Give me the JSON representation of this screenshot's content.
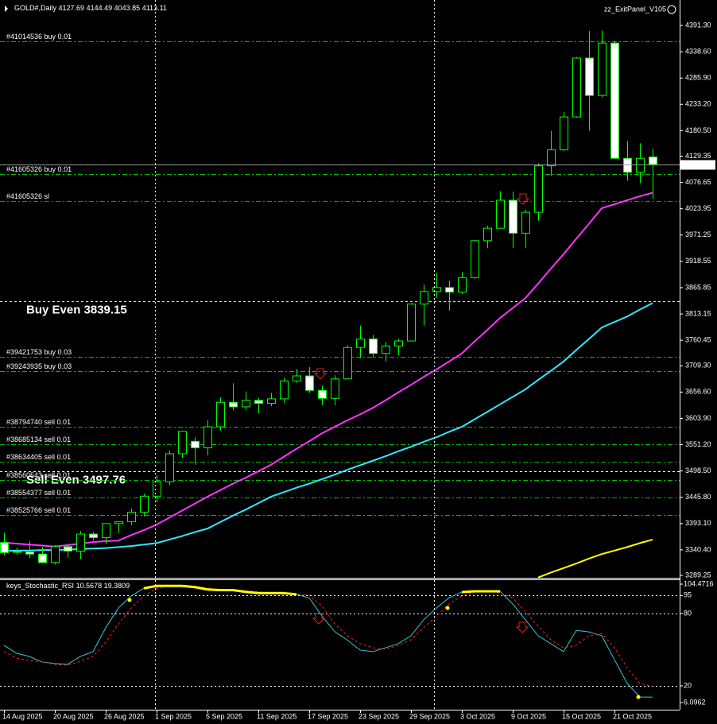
{
  "chart_data": [
    {
      "type": "candlestick",
      "title": "GOLD#,Daily",
      "panel": "zz_ExitPanel_V105",
      "categories": [
        "14 Aug 2025",
        null,
        null,
        null,
        "20 Aug 2025",
        null,
        null,
        null,
        "26 Aug 2025",
        null,
        null,
        null,
        "1 Sep 2025",
        null,
        null,
        null,
        "5 Sep 2025",
        null,
        null,
        null,
        "11 Sep 2025",
        null,
        null,
        null,
        "17 Sep 2025",
        null,
        null,
        null,
        "23 Sep 2025",
        null,
        null,
        null,
        "29 Sep 2025",
        null,
        null,
        null,
        "3 Oct 2025",
        null,
        null,
        null,
        "9 Oct 2025",
        null,
        null,
        null,
        "15 Oct 2025",
        null,
        null,
        null,
        "21 Oct 2025",
        null,
        null,
        null
      ],
      "open": [
        3355,
        3337,
        3336,
        3332,
        3315,
        3347,
        3338,
        3372,
        3365,
        3393,
        3397,
        3416,
        3448,
        3477,
        3533,
        3558,
        3545,
        3587,
        3636,
        3627,
        3640,
        3634,
        3643,
        3679,
        3689,
        3660,
        3644,
        3683,
        3746,
        3763,
        3734,
        3749,
        3759,
        3833,
        3858,
        3866,
        3857,
        3886,
        3960,
        3985,
        4041,
        3975,
        4017,
        4110,
        4142,
        4208,
        4326,
        4251,
        4356,
        4125,
        4097,
        4127.69
      ],
      "high": [
        3375,
        3345,
        3358,
        3346,
        3350,
        3350,
        3378,
        3376,
        3393,
        3398,
        3423,
        3453,
        3490,
        3540,
        3578,
        3566,
        3600,
        3646,
        3674,
        3658,
        3645,
        3655,
        3685,
        3703,
        3707,
        3670,
        3690,
        3750,
        3790,
        3771,
        3757,
        3763,
        3835,
        3872,
        3895,
        3880,
        3897,
        3960,
        3990,
        4059,
        4058,
        4022,
        4115,
        4180,
        4218,
        4328,
        4380,
        4381,
        4360,
        4160,
        4155,
        4144.49
      ],
      "low": [
        3330,
        3330,
        3324,
        3315,
        3311,
        3325,
        3322,
        3360,
        3352,
        3375,
        3390,
        3408,
        3436,
        3470,
        3525,
        3511,
        3530,
        3580,
        3620,
        3620,
        3614,
        3628,
        3635,
        3675,
        3655,
        3630,
        3630,
        3682,
        3725,
        3725,
        3718,
        3730,
        3758,
        3790,
        3845,
        3820,
        3853,
        3884,
        3945,
        3985,
        3945,
        3945,
        4000,
        4090,
        4140,
        4206,
        4180,
        4247,
        4125,
        4080,
        4075,
        4043.85
      ],
      "close": [
        3335,
        3336,
        3332,
        3315,
        3347,
        3338,
        3372,
        3365,
        3393,
        3397,
        3416,
        3448,
        3477,
        3533,
        3578,
        3545,
        3587,
        3636,
        3627,
        3640,
        3634,
        3643,
        3679,
        3689,
        3660,
        3644,
        3683,
        3746,
        3763,
        3734,
        3749,
        3759,
        3833,
        3858,
        3866,
        3857,
        3886,
        3960,
        3985,
        4041,
        3975,
        4017,
        4110,
        4142,
        4208,
        4326,
        4251,
        4356,
        4125,
        4097,
        4125,
        4113.11
      ],
      "up_color": "#000000",
      "down_color": "#ffffff",
      "wick_color": "#00ff00",
      "series": [
        {
          "color": "#ff33ff",
          "values": [
            3355,
            3353,
            3351,
            3349,
            3347,
            3350,
            3353,
            3356,
            3358,
            3359,
            3370,
            3380,
            3391,
            3405,
            3419,
            3433,
            3447,
            3460,
            3473,
            3485,
            3498,
            3511,
            3527,
            3543,
            3558,
            3574,
            3587,
            3600,
            3612,
            3625,
            3640,
            3656,
            3671,
            3687,
            3702,
            3718,
            3734,
            3758,
            3781,
            3805,
            3825,
            3845,
            3874,
            3904,
            3933,
            3964,
            3994,
            4025,
            4033,
            4041,
            4049,
            4056
          ]
        },
        {
          "color": "#33e6ff",
          "values": [
            3338,
            3339,
            3339,
            3340,
            3340,
            3341,
            3342,
            3343,
            3344,
            3346,
            3348,
            3351,
            3354,
            3361,
            3368,
            3376,
            3383,
            3396,
            3409,
            3421,
            3434,
            3447,
            3456,
            3465,
            3473,
            3482,
            3491,
            3501,
            3510,
            3519,
            3528,
            3538,
            3547,
            3557,
            3566,
            3577,
            3587,
            3602,
            3617,
            3632,
            3647,
            3662,
            3681,
            3699,
            3718,
            3741,
            3763,
            3786,
            3797,
            3808,
            3822,
            3835
          ]
        },
        {
          "color": "#ffff00",
          "values": [
            null,
            null,
            null,
            null,
            null,
            null,
            null,
            null,
            null,
            null,
            null,
            null,
            null,
            null,
            null,
            null,
            null,
            null,
            null,
            null,
            null,
            null,
            null,
            null,
            null,
            null,
            null,
            null,
            null,
            null,
            null,
            null,
            null,
            null,
            null,
            null,
            null,
            null,
            null,
            null,
            null,
            null,
            3285,
            3295,
            3304,
            3313,
            3323,
            3332,
            3339,
            3346,
            3354,
            3361
          ]
        }
      ],
      "levels": [
        {
          "label": "#41014536 buy 0.01",
          "value": 4359.5,
          "color": "#00c000",
          "text_color": "#ffffff",
          "dash": "6,3,2,3"
        },
        {
          "label": "#41605326 buy 0.01",
          "value": 4093.5,
          "color": "#00c000",
          "text_color": "#ffffff",
          "dash": "6,3,2,3"
        },
        {
          "label": "#41605326 sl",
          "value": 4039.3,
          "color": "#ff2020",
          "text_color": "#ffffff",
          "dash": "6,3,2,3"
        },
        {
          "label": "Buy Even 3839.15",
          "value": 3839.15,
          "color": "#ffff00",
          "text_color": "#ffff33",
          "dash": "3,3",
          "big": true
        },
        {
          "label": "#39421753 buy 0.03",
          "value": 3727.2,
          "color": "#00c000",
          "text_color": "#ffffff",
          "dash": "6,3,2,3"
        },
        {
          "label": "#39243935 buy 0.03",
          "value": 3698.5,
          "color": "#00c000",
          "text_color": "#ffffff",
          "dash": "6,3,2,3"
        },
        {
          "label": "#38794740 sell 0.01",
          "value": 3587,
          "color": "#00c000",
          "text_color": "#ffffff",
          "dash": "6,3,2,3"
        },
        {
          "label": "#38685134 sell 0.01",
          "value": 3552,
          "color": "#00c000",
          "text_color": "#ffffff",
          "dash": "6,3,2,3"
        },
        {
          "label": "#38634405 sell 0.01",
          "value": 3517,
          "color": "#00c000",
          "text_color": "#ffffff",
          "dash": "6,3,2,3"
        },
        {
          "label": "Sell Even 3497.76",
          "value": 3497.76,
          "color": "#ffffff",
          "text_color": "#ffff33",
          "dash": "3,3",
          "big": true
        },
        {
          "label": "#38560543 sell 0.01",
          "value": 3480,
          "color": "#00c000",
          "text_color": "#ffffff",
          "dash": "6,3,2,3"
        },
        {
          "label": "#38554377 sell 0.01",
          "value": 3445,
          "color": "#00c000",
          "text_color": "#ffffff",
          "dash": "6,3,2,3"
        },
        {
          "label": "#38525766 sell 0.01",
          "value": 3410,
          "color": "#00c000",
          "text_color": "#ffffff",
          "dash": "6,3,2,3"
        }
      ],
      "bid": 4113.11,
      "ylim": [
        3284.5,
        4442.3
      ],
      "yticks": [
        {
          "value": 4391.3,
          "label": "4391.30"
        },
        {
          "value": 4338.6,
          "label": "4338.60"
        },
        {
          "value": 4285.9,
          "label": "4285.90"
        },
        {
          "value": 4233.2,
          "label": "4233.20"
        },
        {
          "value": 4180.5,
          "label": "4180.50"
        },
        4129.35,
        4076.65,
        4023.95,
        3971.25,
        3918.55,
        3865.85,
        3813.15,
        3760.45,
        {
          "value": 3709.3,
          "label": "3709.30"
        },
        {
          "value": 3656.6,
          "label": "3656.60"
        },
        {
          "value": 3603.9,
          "label": "3603.90"
        },
        {
          "value": 3551.2,
          "label": "3551.20"
        },
        {
          "value": 3498.5,
          "label": "3498.50"
        },
        {
          "value": 3445.8,
          "label": "3445.80"
        },
        {
          "value": 3393.1,
          "label": "3393.10"
        },
        {
          "value": 3340.4,
          "label": "3340.40"
        },
        3289.25
      ]
    },
    {
      "type": "line",
      "title": "keys_Stochastic_RSI",
      "series": [
        {
          "color": "#33c8d8",
          "values": [
            53.6,
            47,
            44.4,
            39.8,
            38.5,
            37.8,
            44.4,
            48.4,
            68.2,
            84.7,
            94.6,
            101,
            103,
            103,
            103,
            102,
            100,
            99.5,
            99.5,
            98,
            97,
            97,
            97,
            96,
            93,
            78,
            65,
            58,
            49.7,
            48.4,
            51.6,
            55,
            61.6,
            74.8,
            84.7,
            93.2,
            97.9,
            98.5,
            98.5,
            98.5,
            88,
            74.8,
            61.6,
            55,
            48.4,
            66,
            64.8,
            61.6,
            41.7,
            22,
            10.7,
            10.5678
          ]
        },
        {
          "color": "#ff2020",
          "dash": "3,3",
          "values": [
            48.4,
            43,
            41,
            39.8,
            37.8,
            37.1,
            40.4,
            44.4,
            56.3,
            71.5,
            84.7,
            94.6,
            101,
            103,
            103,
            103,
            101,
            100,
            99.5,
            99,
            98,
            97,
            97,
            96.5,
            95,
            86.6,
            71.5,
            61.6,
            55,
            51.6,
            50.3,
            53.6,
            58.2,
            68.2,
            78,
            88,
            94.6,
            97.9,
            98.5,
            97.2,
            93.2,
            81.4,
            69.5,
            58.2,
            51.6,
            53.6,
            61.6,
            63.5,
            51.6,
            35,
            22,
            19.3809
          ]
        }
      ],
      "highlight": {
        "above": 95,
        "color": "#ffff00"
      },
      "levels": [
        95,
        80,
        20
      ],
      "ylim": [
        0.15,
        108.43
      ],
      "yticks": [
        104.4716,
        95,
        80,
        20,
        6.0962
      ]
    }
  ]
}
